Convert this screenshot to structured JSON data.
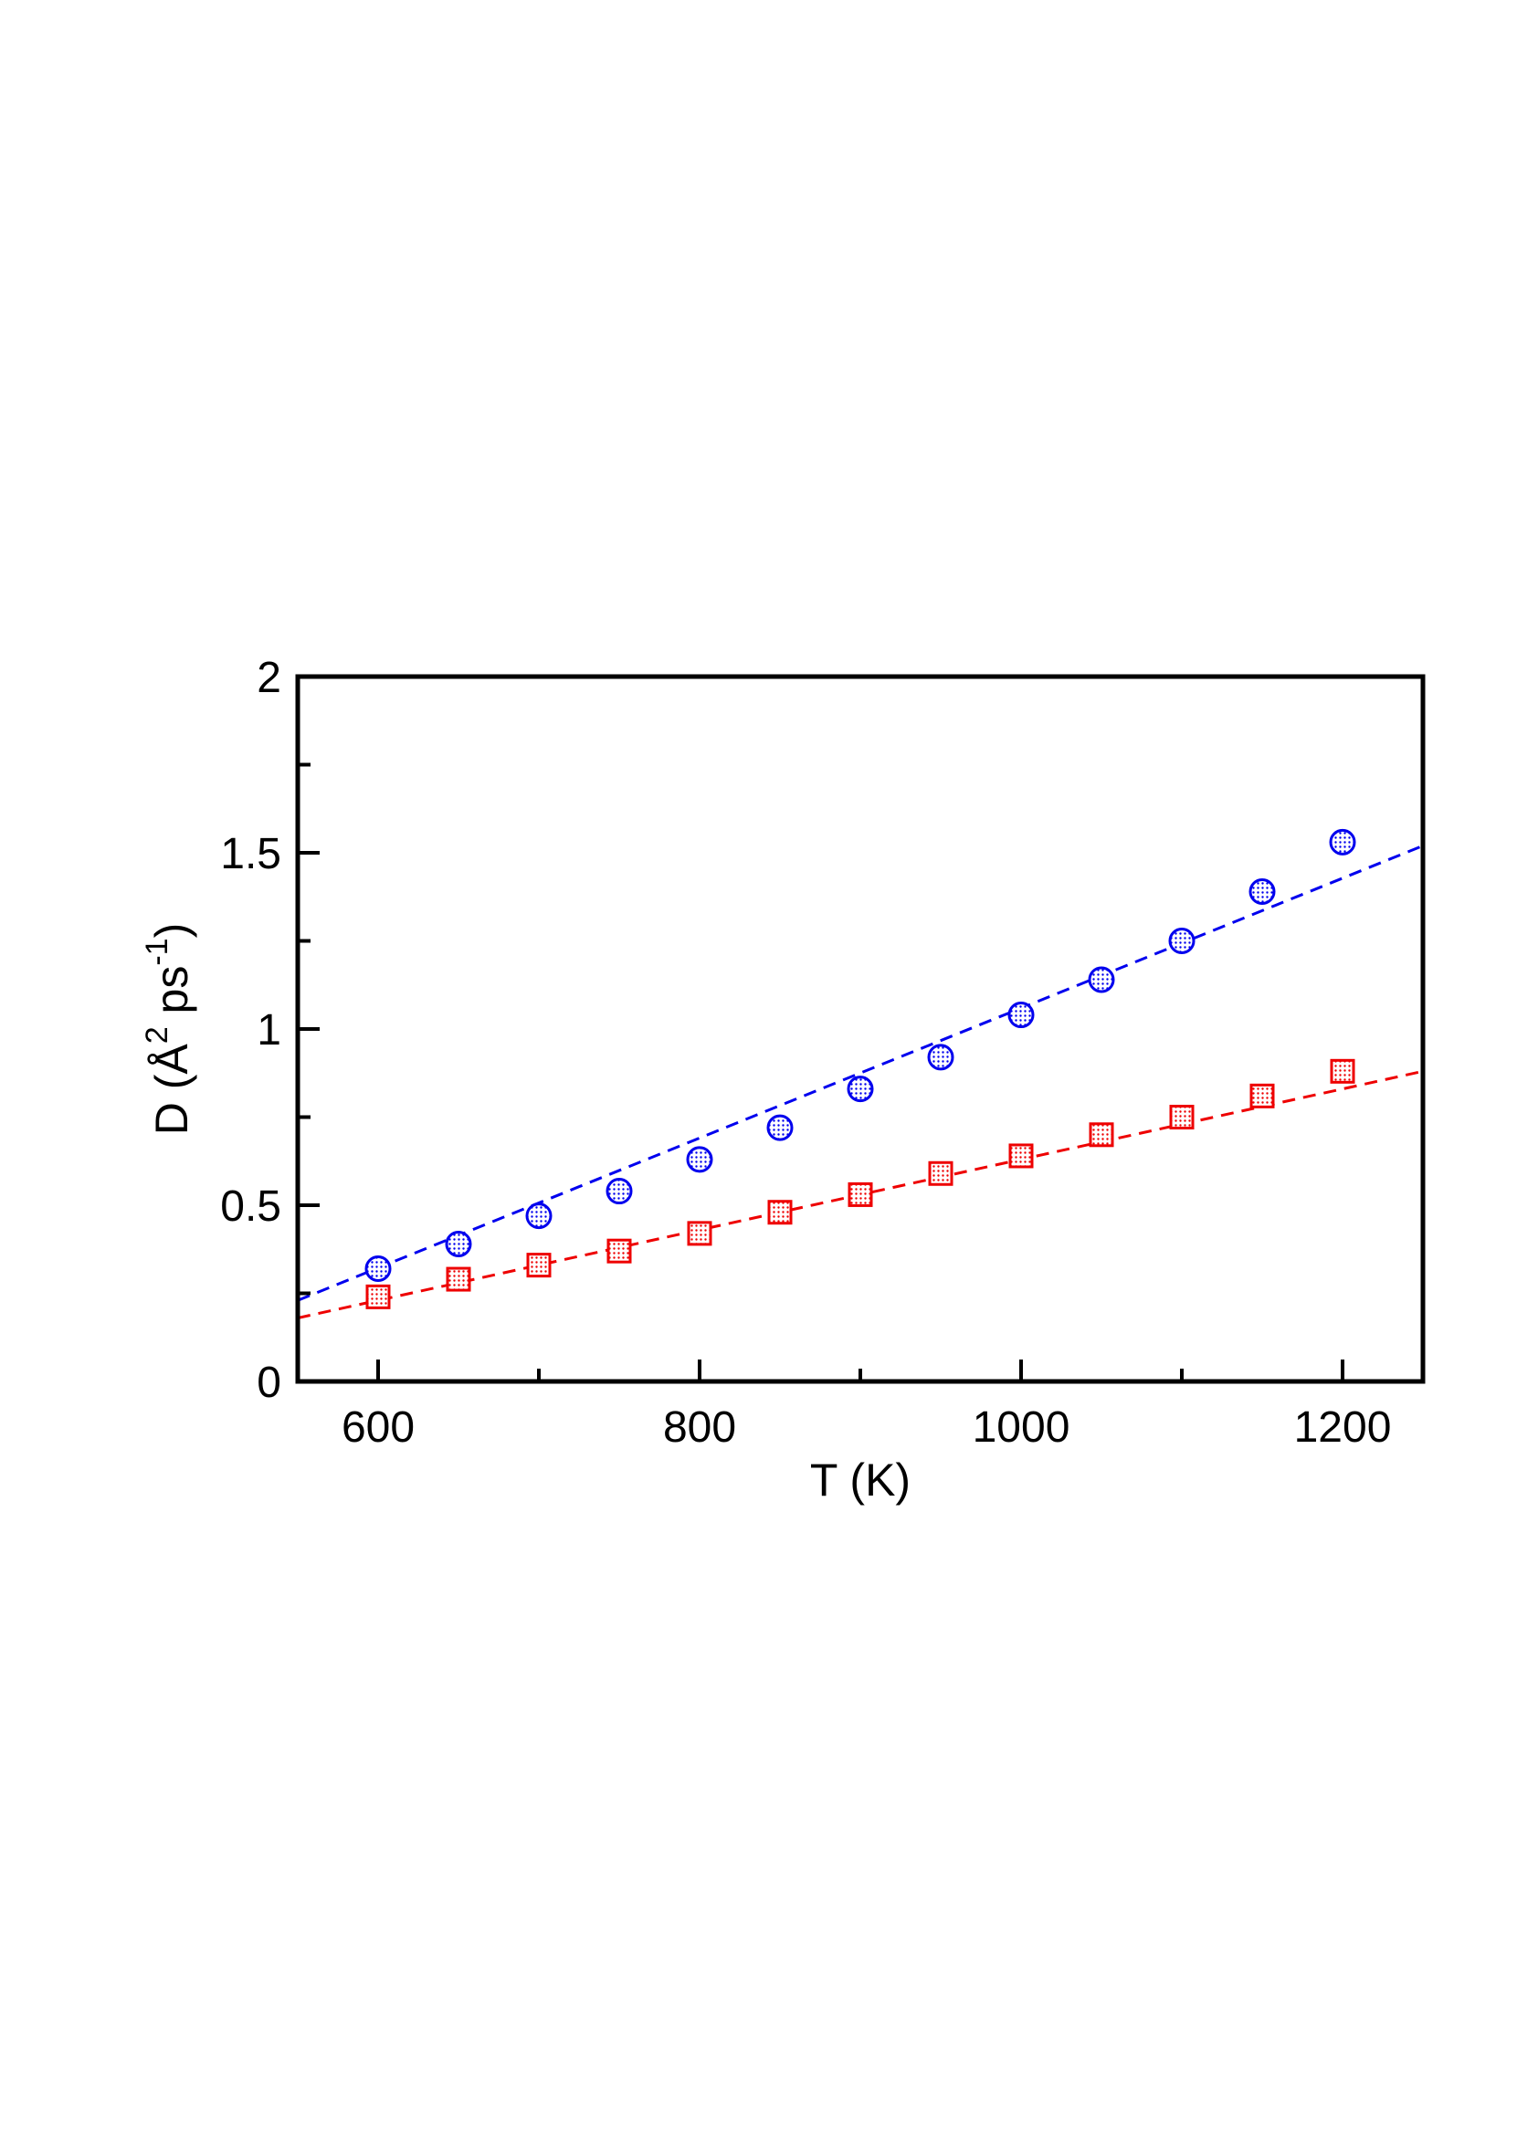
{
  "chart_data": {
    "type": "scatter",
    "title": "",
    "xlabel": "T (K)",
    "ylabel": {
      "prefix": "D (Å",
      "sup1": "2",
      "middle": " ps",
      "sup2": "-1",
      "suffix": ")"
    },
    "xlim": [
      550,
      1250
    ],
    "ylim": [
      0,
      2
    ],
    "x_major_ticks": [
      600,
      800,
      1000,
      1200
    ],
    "x_tick_labels": [
      "600",
      "800",
      "1000",
      "1200"
    ],
    "x_minor_ticks": [
      700,
      900,
      1100
    ],
    "y_major_ticks": [
      0,
      0.5,
      1,
      1.5,
      2
    ],
    "y_tick_labels": [
      "0",
      "0.5",
      "1",
      "1.5",
      "2"
    ],
    "y_minor_ticks": [
      0.25,
      0.75,
      1.25,
      1.75
    ],
    "grid": false,
    "legend": "none",
    "series": [
      {
        "marker": "circle",
        "color": "#0000ee",
        "x": [
          600,
          650,
          700,
          750,
          800,
          850,
          900,
          950,
          1000,
          1050,
          1100,
          1150,
          1200
        ],
        "y": [
          0.32,
          0.39,
          0.47,
          0.54,
          0.63,
          0.72,
          0.83,
          0.92,
          1.04,
          1.14,
          1.25,
          1.39,
          1.53
        ],
        "fit": {
          "style": "dashed",
          "x": [
            550,
            1250
          ],
          "y": [
            0.23,
            1.52
          ]
        }
      },
      {
        "marker": "square",
        "color": "#ee0000",
        "x": [
          600,
          650,
          700,
          750,
          800,
          850,
          900,
          950,
          1000,
          1050,
          1100,
          1150,
          1200
        ],
        "y": [
          0.24,
          0.29,
          0.33,
          0.37,
          0.42,
          0.48,
          0.53,
          0.59,
          0.64,
          0.7,
          0.75,
          0.81,
          0.88
        ],
        "fit": {
          "style": "dashed",
          "x": [
            550,
            1250
          ],
          "y": [
            0.18,
            0.88
          ]
        }
      }
    ]
  }
}
